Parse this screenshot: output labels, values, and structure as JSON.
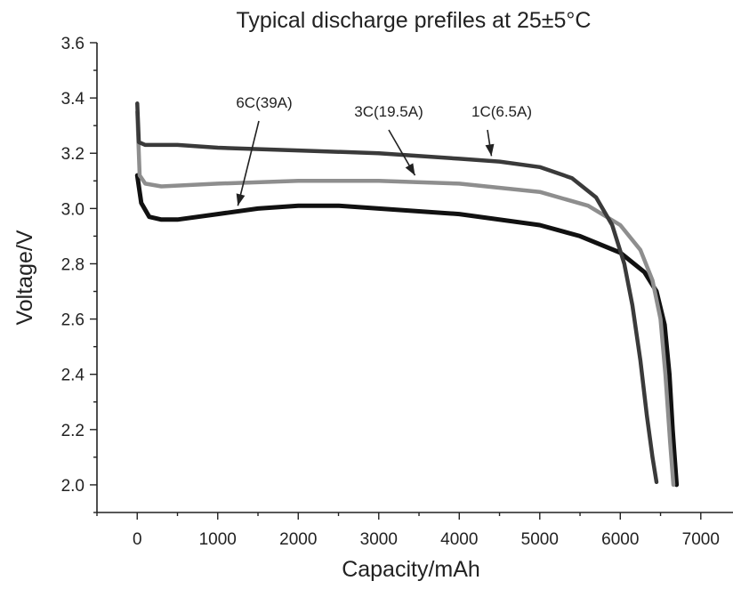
{
  "chart_data": {
    "type": "line",
    "title": "Typical discharge prefiles at 25±5°C",
    "xlabel": "Capacity/mAh",
    "ylabel": "Voltage/V",
    "xlim": [
      -500,
      7400
    ],
    "ylim": [
      1.9,
      3.6
    ],
    "xticks": [
      0,
      1000,
      2000,
      3000,
      4000,
      5000,
      6000,
      7000
    ],
    "yticks": [
      2.0,
      2.2,
      2.4,
      2.6,
      2.8,
      3.0,
      3.2,
      3.4,
      3.6
    ],
    "xtick_labels": [
      "0",
      "1000",
      "2000",
      "3000",
      "4000",
      "5000",
      "6000",
      "7000"
    ],
    "ytick_labels": [
      "2.0",
      "2.2",
      "2.4",
      "2.6",
      "2.8",
      "3.0",
      "3.2",
      "3.4",
      "3.6"
    ],
    "grid": false,
    "legend": "none",
    "series": [
      {
        "name": "1C(6.5A)",
        "color": "#3a3a3a",
        "x": [
          0,
          20,
          100,
          500,
          1000,
          2000,
          3000,
          4000,
          4500,
          5000,
          5400,
          5700,
          5900,
          6050,
          6150,
          6250,
          6330,
          6400,
          6450
        ],
        "y": [
          3.38,
          3.24,
          3.23,
          3.23,
          3.22,
          3.21,
          3.2,
          3.18,
          3.17,
          3.15,
          3.11,
          3.04,
          2.94,
          2.8,
          2.65,
          2.45,
          2.25,
          2.1,
          2.01
        ]
      },
      {
        "name": "3C(19.5A)",
        "color": "#8e8e8e",
        "x": [
          0,
          30,
          100,
          300,
          1000,
          2000,
          3000,
          4000,
          5000,
          5600,
          6000,
          6250,
          6400,
          6500,
          6560,
          6620,
          6660
        ],
        "y": [
          3.35,
          3.12,
          3.09,
          3.08,
          3.09,
          3.1,
          3.1,
          3.09,
          3.06,
          3.01,
          2.94,
          2.85,
          2.74,
          2.6,
          2.4,
          2.15,
          2.0
        ]
      },
      {
        "name": "6C(39A)",
        "color": "#111111",
        "x": [
          0,
          50,
          150,
          300,
          500,
          1000,
          1500,
          2000,
          2500,
          3000,
          4000,
          5000,
          5500,
          6000,
          6300,
          6450,
          6550,
          6610,
          6650,
          6680,
          6700
        ],
        "y": [
          3.12,
          3.02,
          2.97,
          2.96,
          2.96,
          2.98,
          3.0,
          3.01,
          3.01,
          3.0,
          2.98,
          2.94,
          2.9,
          2.84,
          2.77,
          2.7,
          2.58,
          2.4,
          2.2,
          2.08,
          2.0
        ]
      }
    ],
    "annotations": [
      {
        "text": "6C(39A)",
        "points_to_x": 1250,
        "points_to_y": 3.01
      },
      {
        "text": "3C(19.5A)",
        "points_to_x": 3450,
        "points_to_y": 3.12
      },
      {
        "text": "1C(6.5A)",
        "points_to_x": 4400,
        "points_to_y": 3.19
      }
    ]
  }
}
